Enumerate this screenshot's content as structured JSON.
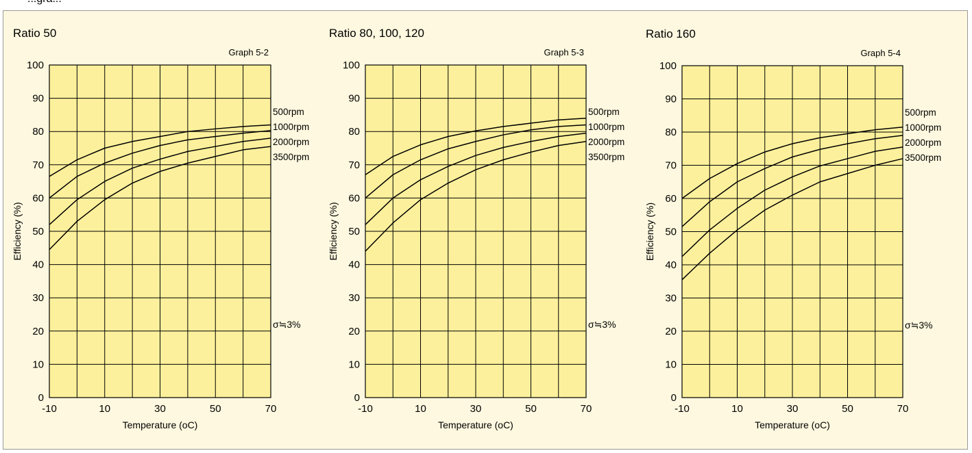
{
  "header_fragment": "...gra...",
  "chart_data": [
    {
      "type": "line",
      "title": "Ratio 50",
      "graph_id": "Graph 5-2",
      "xlabel": "Temperature (oC)",
      "ylabel": "Efficiency (%)",
      "xlim": [
        -10,
        70
      ],
      "ylim": [
        0,
        100
      ],
      "xticks": [
        "-10",
        "10",
        "30",
        "50",
        "70"
      ],
      "yticks": [
        "0",
        "10",
        "20",
        "30",
        "40",
        "50",
        "60",
        "70",
        "80",
        "90",
        "100"
      ],
      "annotation": "σ≒3%",
      "grid": true,
      "x": [
        -10,
        0,
        10,
        20,
        30,
        40,
        50,
        60,
        70
      ],
      "series": [
        {
          "name": "500rpm",
          "values": [
            66.5,
            71.5,
            75,
            77,
            78.5,
            80,
            80.8,
            81.5,
            82
          ]
        },
        {
          "name": "1000rpm",
          "values": [
            60,
            66.5,
            70.5,
            73.5,
            75.8,
            77.5,
            78.5,
            79.5,
            80.3
          ]
        },
        {
          "name": "2000rpm",
          "values": [
            52,
            59.5,
            65,
            69,
            71.7,
            74,
            75.5,
            77,
            78
          ]
        },
        {
          "name": "3500rpm",
          "values": [
            44.5,
            53,
            59.5,
            64.5,
            68,
            70.5,
            72.5,
            74.5,
            75.5
          ]
        }
      ]
    },
    {
      "type": "line",
      "title": "Ratio 80, 100, 120",
      "graph_id": "Graph 5-3",
      "xlabel": "Temperature (oC)",
      "ylabel": "Efficiency (%)",
      "xlim": [
        -10,
        70
      ],
      "ylim": [
        0,
        100
      ],
      "xticks": [
        "-10",
        "10",
        "30",
        "50",
        "70"
      ],
      "yticks": [
        "0",
        "10",
        "20",
        "30",
        "40",
        "50",
        "60",
        "70",
        "80",
        "90",
        "100"
      ],
      "annotation": "σ≒3%",
      "grid": true,
      "x": [
        -10,
        0,
        10,
        20,
        30,
        40,
        50,
        60,
        70
      ],
      "series": [
        {
          "name": "500rpm",
          "values": [
            67,
            72.5,
            76,
            78.5,
            80.2,
            81.5,
            82.5,
            83.5,
            84
          ]
        },
        {
          "name": "1000rpm",
          "values": [
            60,
            67,
            71.5,
            74.8,
            77,
            79,
            80.5,
            81.5,
            82
          ]
        },
        {
          "name": "2000rpm",
          "values": [
            52,
            60,
            65.5,
            69.5,
            72.8,
            75.2,
            77,
            78.5,
            79.5
          ]
        },
        {
          "name": "3500rpm",
          "values": [
            44,
            52.5,
            59.5,
            64.5,
            68.5,
            71.5,
            73.8,
            75.8,
            77
          ]
        }
      ]
    },
    {
      "type": "line",
      "title": "Ratio 160",
      "graph_id": "Graph 5-4",
      "xlabel": "Temperature (oC)",
      "ylabel": "Efficiency (%)",
      "xlim": [
        -10,
        70
      ],
      "ylim": [
        0,
        100
      ],
      "xticks": [
        "-10",
        "10",
        "30",
        "50",
        "70"
      ],
      "yticks": [
        "0",
        "10",
        "20",
        "30",
        "40",
        "50",
        "60",
        "70",
        "80",
        "90",
        "100"
      ],
      "annotation": "σ≒3%",
      "grid": true,
      "x": [
        -10,
        0,
        10,
        20,
        30,
        40,
        50,
        60,
        70
      ],
      "series": [
        {
          "name": "500rpm",
          "values": [
            60,
            66,
            70.5,
            74,
            76.5,
            78.3,
            79.5,
            80.7,
            81.5
          ]
        },
        {
          "name": "1000rpm",
          "values": [
            51.5,
            59,
            65,
            69,
            72.5,
            74.8,
            76.5,
            78,
            79
          ]
        },
        {
          "name": "2000rpm",
          "values": [
            42.5,
            50.5,
            57,
            62.5,
            66.5,
            69.8,
            72,
            74.2,
            75.5
          ]
        },
        {
          "name": "3500rpm",
          "values": [
            35.5,
            43.5,
            50.5,
            56.5,
            61,
            65,
            67.5,
            70,
            72
          ]
        }
      ]
    }
  ]
}
